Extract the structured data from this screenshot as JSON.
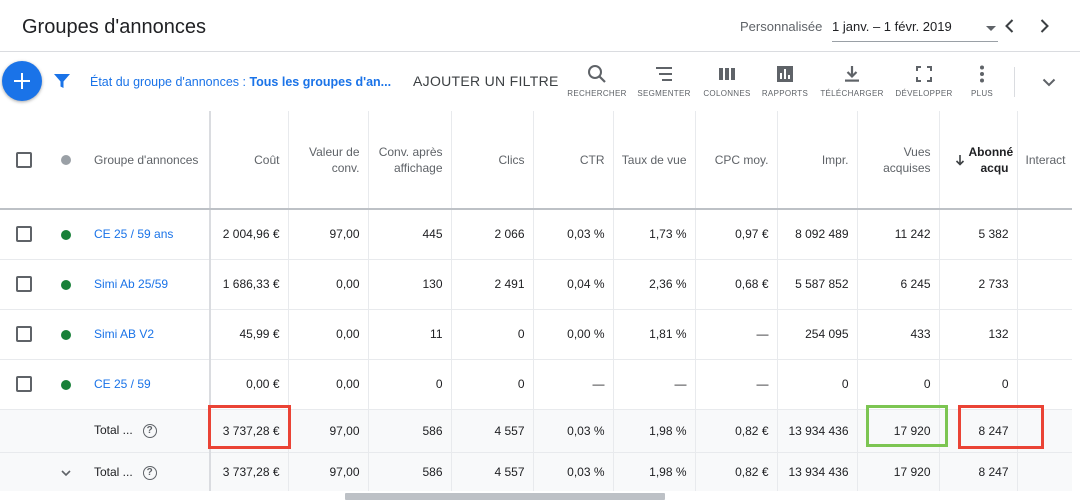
{
  "header": {
    "title": "Groupes d'annonces",
    "date_label": "Personnalisée",
    "date_range": "1 janv. – 1 févr. 2019"
  },
  "toolbar": {
    "filter_prefix": "État du groupe d'annonces : ",
    "filter_value": "Tous les groupes d'an...",
    "add_filter": "AJOUTER UN FILTRE",
    "buttons": [
      {
        "label": "RECHERCHER",
        "icon": "search-icon"
      },
      {
        "label": "SEGMENTER",
        "icon": "segment-icon"
      },
      {
        "label": "COLONNES",
        "icon": "columns-icon"
      },
      {
        "label": "RAPPORTS",
        "icon": "reports-icon"
      },
      {
        "label": "TÉLÉCHARGER",
        "icon": "download-icon"
      },
      {
        "label": "DÉVELOPPER",
        "icon": "expand-icon"
      },
      {
        "label": "PLUS",
        "icon": "more-vert-icon"
      }
    ]
  },
  "table": {
    "columns": {
      "name": "Groupe d'annonces",
      "cost": "Coût",
      "conv_value": "Valeur de conv.",
      "view_conv": "Conv. après affichage",
      "clicks": "Clics",
      "ctr": "CTR",
      "view_rate": "Taux de vue",
      "avg_cpc": "CPC moy.",
      "impr": "Impr.",
      "earned_views": "Vues acquises",
      "earned_subs": "Abonné acqu",
      "interactions": "Interact"
    },
    "rows": [
      {
        "name": "CE 25 / 59 ans",
        "cost": "2 004,96 €",
        "conv_value": "97,00",
        "view_conv": "445",
        "clicks": "2 066",
        "ctr": "0,03 %",
        "view_rate": "1,73 %",
        "avg_cpc": "0,97 €",
        "impr": "8 092 489",
        "earned_views": "11 242",
        "earned_subs": "5 382",
        "interactions": ""
      },
      {
        "name": "Simi Ab 25/59",
        "cost": "1 686,33 €",
        "conv_value": "0,00",
        "view_conv": "130",
        "clicks": "2 491",
        "ctr": "0,04 %",
        "view_rate": "2,36 %",
        "avg_cpc": "0,68 €",
        "impr": "5 587 852",
        "earned_views": "6 245",
        "earned_subs": "2 733",
        "interactions": ""
      },
      {
        "name": "Simi AB V2",
        "cost": "45,99 €",
        "conv_value": "0,00",
        "view_conv": "11",
        "clicks": "0",
        "ctr": "0,00 %",
        "view_rate": "1,81 %",
        "avg_cpc": "—",
        "impr": "254 095",
        "earned_views": "433",
        "earned_subs": "132",
        "interactions": ""
      },
      {
        "name": "CE 25 / 59",
        "cost": "0,00 €",
        "conv_value": "0,00",
        "view_conv": "0",
        "clicks": "0",
        "ctr": "—",
        "view_rate": "—",
        "avg_cpc": "—",
        "impr": "0",
        "earned_views": "0",
        "earned_subs": "0",
        "interactions": ""
      }
    ],
    "totals": [
      {
        "label": "Total ...",
        "cost": "3 737,28 €",
        "conv_value": "97,00",
        "view_conv": "586",
        "clicks": "4 557",
        "ctr": "0,03 %",
        "view_rate": "1,98 %",
        "avg_cpc": "0,82 €",
        "impr": "13 934 436",
        "earned_views": "17 920",
        "earned_subs": "8 247"
      },
      {
        "label": "Total ...",
        "cost": "3 737,28 €",
        "conv_value": "97,00",
        "view_conv": "586",
        "clicks": "4 557",
        "ctr": "0,03 %",
        "view_rate": "1,98 %",
        "avg_cpc": "0,82 €",
        "impr": "13 934 436",
        "earned_views": "17 920",
        "earned_subs": "8 247"
      }
    ],
    "help_glyph": "?"
  },
  "colors": {
    "accent": "#1a73e8",
    "status_enabled": "#188038",
    "highlight_red": "#ea4335",
    "highlight_green": "#7cc552"
  }
}
